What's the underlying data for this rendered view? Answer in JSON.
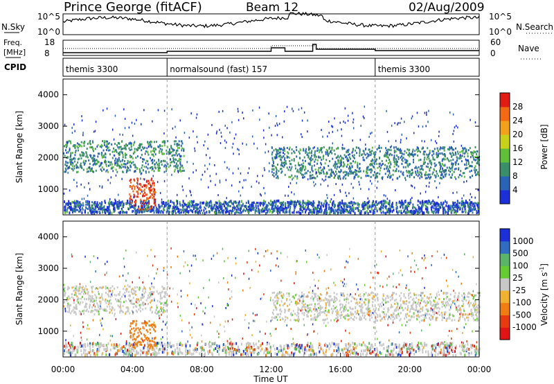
{
  "header": {
    "station": "Prince George (fitACF)",
    "beam": "Beam 12",
    "date": "02/Aug/2009"
  },
  "strips": {
    "nsky": {
      "label": "N.Sky",
      "ticks": [
        "10^5",
        "10^0"
      ],
      "right_ticks": [
        "10^5",
        "10^0"
      ],
      "right_label": "N.Search"
    },
    "freq": {
      "label_line1": "Freq.",
      "label_line2": "[MHz]",
      "ticks": [
        "18",
        "8"
      ],
      "right_ticks": [
        "60",
        "0"
      ],
      "right_label": "Nave"
    },
    "cpid": {
      "label": "CPID",
      "segments": [
        {
          "name": "themis 3300",
          "start_hour": 0
        },
        {
          "name": "normalsound (fast) 157",
          "start_hour": 6
        },
        {
          "name": "themis 3300",
          "start_hour": 18
        }
      ]
    }
  },
  "chart_data": [
    {
      "type": "heatmap",
      "panel": "power",
      "ylabel": "Slant Range [km]",
      "ylim": [
        180,
        4500
      ],
      "y_ticks": [
        "1000",
        "2000",
        "3000",
        "4000"
      ],
      "xlim": [
        0,
        24
      ],
      "colorbar": {
        "label": "Power [dB]",
        "ticks": [
          "4",
          "8",
          "12",
          "16",
          "20",
          "24",
          "28"
        ],
        "colors": [
          "#1c2fd8",
          "#2a64b6",
          "#3a8f6a",
          "#5fbf3a",
          "#c8d21a",
          "#f2a21a",
          "#f36a12",
          "#e21c12"
        ]
      },
      "features": [
        {
          "name": "low-range clutter",
          "time_start": 0,
          "time_end": 24,
          "range_start": 200,
          "range_end": 550,
          "level_db": 6
        },
        {
          "name": "early evening band",
          "time_start": 0,
          "time_end": 7,
          "range_start": 1500,
          "range_end": 2500,
          "level_db": 10
        },
        {
          "name": "strong echo",
          "time_start": 3.8,
          "time_end": 5.3,
          "range_start": 300,
          "range_end": 1300,
          "level_db": 28
        },
        {
          "name": "afternoon band",
          "time_start": 12,
          "time_end": 24,
          "range_start": 1300,
          "range_end": 2300,
          "level_db": 9
        }
      ]
    },
    {
      "type": "heatmap",
      "panel": "velocity",
      "ylabel": "Slant Range [km]",
      "ylim": [
        180,
        4500
      ],
      "y_ticks": [
        "1000",
        "2000",
        "3000",
        "4000"
      ],
      "xlim": [
        0,
        24
      ],
      "xlabel": "Time UT",
      "x_ticks": [
        "00:00",
        "04:00",
        "08:00",
        "12:00",
        "16:00",
        "20:00",
        "00:00"
      ],
      "colorbar": {
        "label": "Velocity [m s",
        "label_sup": "-1",
        "label_end": "]",
        "ticks": [
          "1000",
          "500",
          "100",
          "25",
          "-25",
          "-100",
          "-500",
          "-1000"
        ],
        "colors": [
          "#1c2fd8",
          "#2f6cc2",
          "#5ab56a",
          "#66cc33",
          "#c8c8c8",
          "#f0b030",
          "#f07d12",
          "#e83a10",
          "#e01414"
        ]
      },
      "features": [
        {
          "name": "ground scatter band",
          "time_start": 0,
          "time_end": 6,
          "range_start": 1500,
          "range_end": 2400,
          "velocity": 0
        },
        {
          "name": "receding echo",
          "time_start": 3.8,
          "time_end": 5.3,
          "range_start": 400,
          "range_end": 1300,
          "velocity": -150
        },
        {
          "name": "afternoon ground scatter",
          "time_start": 12,
          "time_end": 24,
          "range_start": 1300,
          "range_end": 2200,
          "velocity": 0
        }
      ]
    }
  ]
}
